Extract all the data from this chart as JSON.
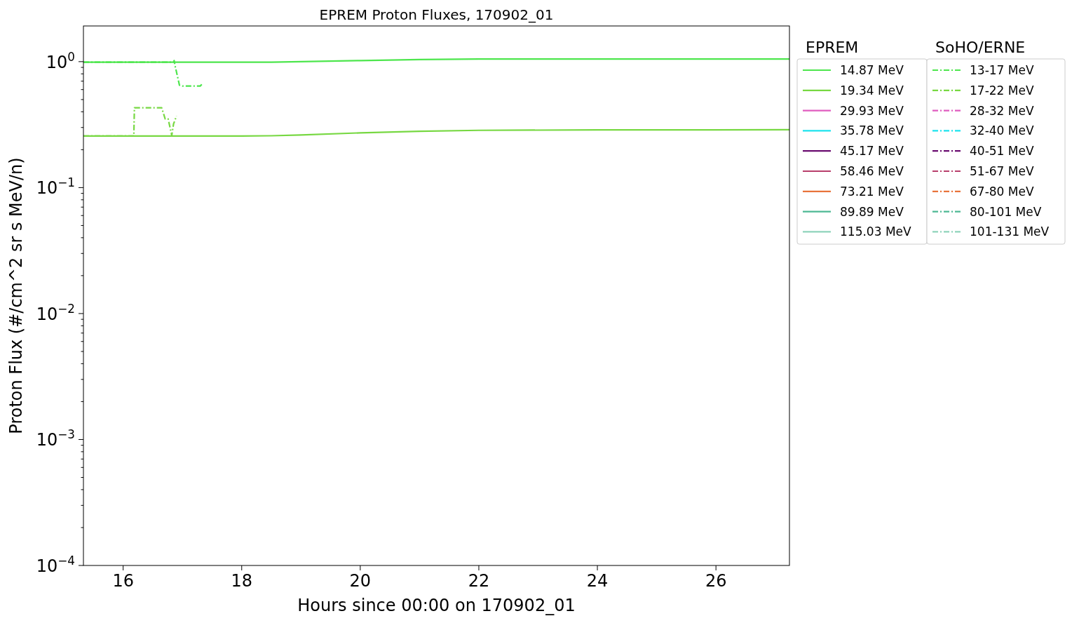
{
  "chart_data": {
    "type": "line",
    "title": "EPREM Proton Fluxes, 170902_01",
    "xlabel": "Hours since 00:00 on 170902_01",
    "ylabel": "Proton Flux (#/cm^2 sr s MeV/n)",
    "legend_title": [
      "EPREM",
      "SoHO/ERNE"
    ],
    "legend": "right",
    "log": "y",
    "xlim": [
      15.33,
      27.24
    ],
    "ylim": [
      0.0001,
      1.92
    ],
    "xticks": [
      16,
      18,
      20,
      22,
      24,
      26
    ],
    "yticks": [
      {
        "value": 0.0001,
        "label": "10$^{−4}$"
      },
      {
        "value": 0.001,
        "label": "10$^{−3}$"
      },
      {
        "value": 0.01,
        "label": "10$^{−2}$"
      },
      {
        "value": 0.1,
        "label": "10$^{−1}$"
      },
      {
        "value": 1,
        "label": "10$^{0}$"
      },
      {
        "value": 0.0002,
        "label": null
      },
      {
        "value": 0.0003,
        "label": null
      },
      {
        "value": 0.0004,
        "label": null
      },
      {
        "value": 0.0005,
        "label": null
      },
      {
        "value": 0.0006,
        "label": null
      },
      {
        "value": 0.0007,
        "label": null
      },
      {
        "value": 0.0008,
        "label": null
      },
      {
        "value": 0.0009,
        "label": null
      },
      {
        "value": 0.002,
        "label": null
      },
      {
        "value": 0.003,
        "label": null
      },
      {
        "value": 0.004,
        "label": null
      },
      {
        "value": 0.005,
        "label": null
      },
      {
        "value": 0.006,
        "label": null
      },
      {
        "value": 0.007,
        "label": null
      },
      {
        "value": 0.008,
        "label": null
      },
      {
        "value": 0.009,
        "label": null
      },
      {
        "value": 0.02,
        "label": null
      },
      {
        "value": 0.03,
        "label": null
      },
      {
        "value": 0.04,
        "label": null
      },
      {
        "value": 0.05,
        "label": null
      },
      {
        "value": 0.06,
        "label": null
      },
      {
        "value": 0.07,
        "label": null
      },
      {
        "value": 0.08,
        "label": null
      },
      {
        "value": 0.09,
        "label": null
      },
      {
        "value": 0.2,
        "label": null
      },
      {
        "value": 0.3,
        "label": null
      },
      {
        "value": 0.4,
        "label": null
      },
      {
        "value": 0.5,
        "label": null
      },
      {
        "value": 0.6,
        "label": null
      },
      {
        "value": 0.7,
        "label": null
      },
      {
        "value": 0.8,
        "label": null
      },
      {
        "value": 0.9,
        "label": null
      }
    ],
    "series": [
      {
        "name": "14.87 MeV",
        "color": "#4de64d",
        "line_style": "solid",
        "x": [
          15.33,
          17,
          18,
          18.5,
          19,
          20,
          21,
          22,
          24,
          27.24
        ],
        "values": [
          0.99,
          0.99,
          0.99,
          0.99,
          1.0,
          1.02,
          1.04,
          1.05,
          1.05,
          1.05
        ]
      },
      {
        "name": "19.34 MeV",
        "color": "#77d842",
        "line_style": "solid",
        "x": [
          15.33,
          17,
          18,
          18.5,
          19,
          20,
          21,
          22,
          24,
          27.24
        ],
        "values": [
          0.257,
          0.257,
          0.257,
          0.258,
          0.262,
          0.272,
          0.28,
          0.285,
          0.287,
          0.288
        ]
      },
      {
        "name": "29.93 MeV",
        "color": "#e05cbf",
        "line_style": "solid"
      },
      {
        "name": "35.78 MeV",
        "color": "#1de3ee",
        "line_style": "solid"
      },
      {
        "name": "45.17 MeV",
        "color": "#6b0d70",
        "line_style": "solid"
      },
      {
        "name": "58.46 MeV",
        "color": "#b83f6c",
        "line_style": "solid"
      },
      {
        "name": "73.21 MeV",
        "color": "#e8743b",
        "line_style": "solid"
      },
      {
        "name": "89.89 MeV",
        "color": "#4db894",
        "line_style": "solid"
      },
      {
        "name": "115.03 MeV",
        "color": "#8fd3bb",
        "line_style": "solid"
      },
      {
        "name": "13-17 MeV",
        "color": "#4de64d",
        "line_style": "dashdot",
        "x": [
          15.33,
          16.0,
          16.5,
          16.85,
          16.86,
          16.88,
          16.95,
          17.0,
          17.3,
          17.35
        ],
        "values": [
          0.99,
          0.99,
          0.99,
          0.99,
          1.02,
          0.91,
          0.65,
          0.64,
          0.64,
          0.68
        ]
      },
      {
        "name": "17-22 MeV",
        "color": "#77d842",
        "line_style": "dashdot",
        "x": [
          15.33,
          16.18,
          16.19,
          16.65,
          16.71,
          16.76,
          16.82,
          16.85,
          16.9
        ],
        "values": [
          0.257,
          0.257,
          0.43,
          0.43,
          0.35,
          0.35,
          0.26,
          0.32,
          0.37
        ]
      },
      {
        "name": "28-32 MeV",
        "color": "#e05cbf",
        "line_style": "dashdot"
      },
      {
        "name": "32-40 MeV",
        "color": "#1de3ee",
        "line_style": "dashdot"
      },
      {
        "name": "40-51 MeV",
        "color": "#6b0d70",
        "line_style": "dashdot"
      },
      {
        "name": "51-67 MeV",
        "color": "#b83f6c",
        "line_style": "dashdot"
      },
      {
        "name": "67-80 MeV",
        "color": "#e8743b",
        "line_style": "dashdot"
      },
      {
        "name": "80-101 MeV",
        "color": "#4db894",
        "line_style": "dashdot"
      },
      {
        "name": "101-131 MeV",
        "color": "#8fd3bb",
        "line_style": "dashdot"
      }
    ]
  }
}
